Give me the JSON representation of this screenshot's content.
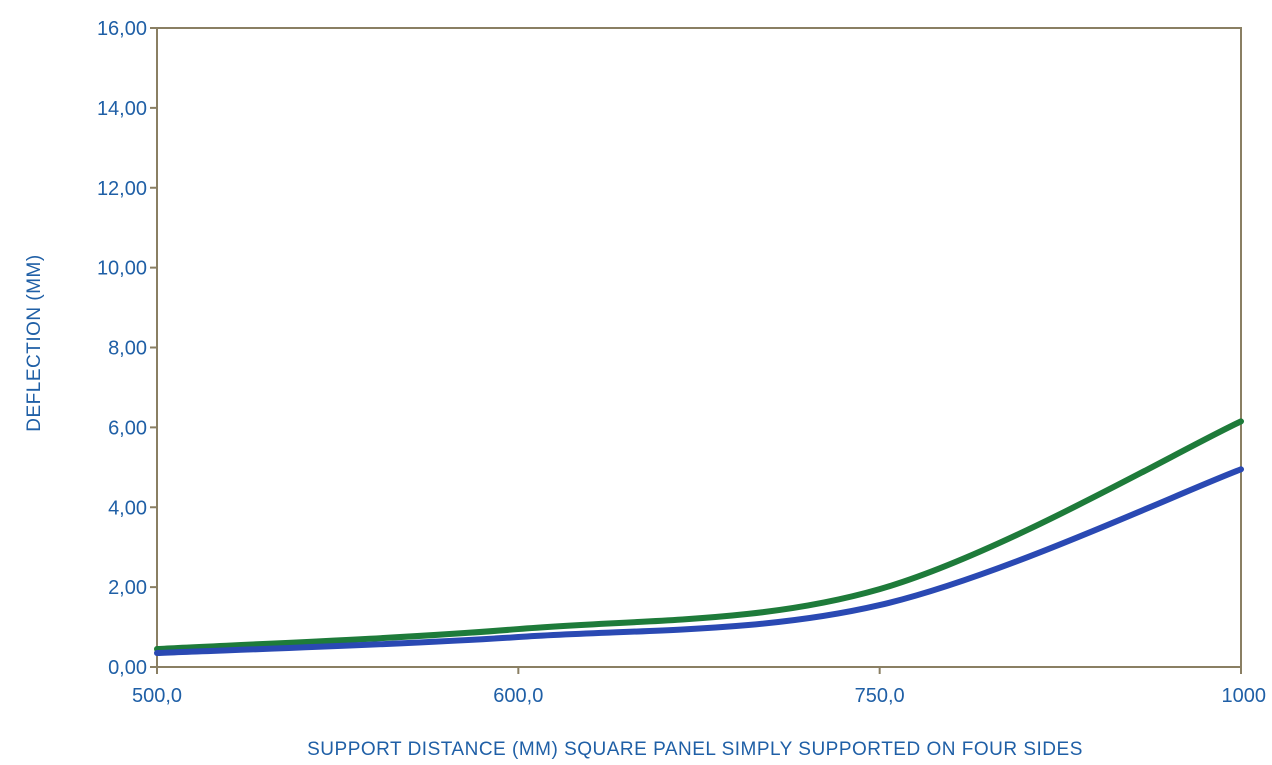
{
  "colors": {
    "text": "#1f5fa6",
    "frame": "#8a7f63",
    "series_green": "#1e7b3a",
    "series_blue": "#2a49b3"
  },
  "chart_data": {
    "type": "line",
    "xlabel": "SUPPORT DISTANCE (MM) SQUARE PANEL SIMPLY SUPPORTED ON FOUR SIDES",
    "ylabel": "DEFLECTION (MM)",
    "ylim": [
      0,
      16
    ],
    "grid": false,
    "legend": "none",
    "x_categories": [
      "500,0",
      "600,0",
      "750,0",
      "1000"
    ],
    "y_ticks": [
      "0,00",
      "2,00",
      "4,00",
      "6,00",
      "8,00",
      "10,00",
      "12,00",
      "14,00",
      "16,00"
    ],
    "series": [
      {
        "color": "#1e7b3a",
        "x": [
          "500,0",
          "600,0",
          "750,0",
          "1000"
        ],
        "values": [
          0.45,
          0.95,
          1.95,
          6.15
        ]
      },
      {
        "color": "#2a49b3",
        "x": [
          "500,0",
          "600,0",
          "750,0",
          "1000"
        ],
        "values": [
          0.35,
          0.75,
          1.55,
          4.95
        ]
      }
    ]
  }
}
